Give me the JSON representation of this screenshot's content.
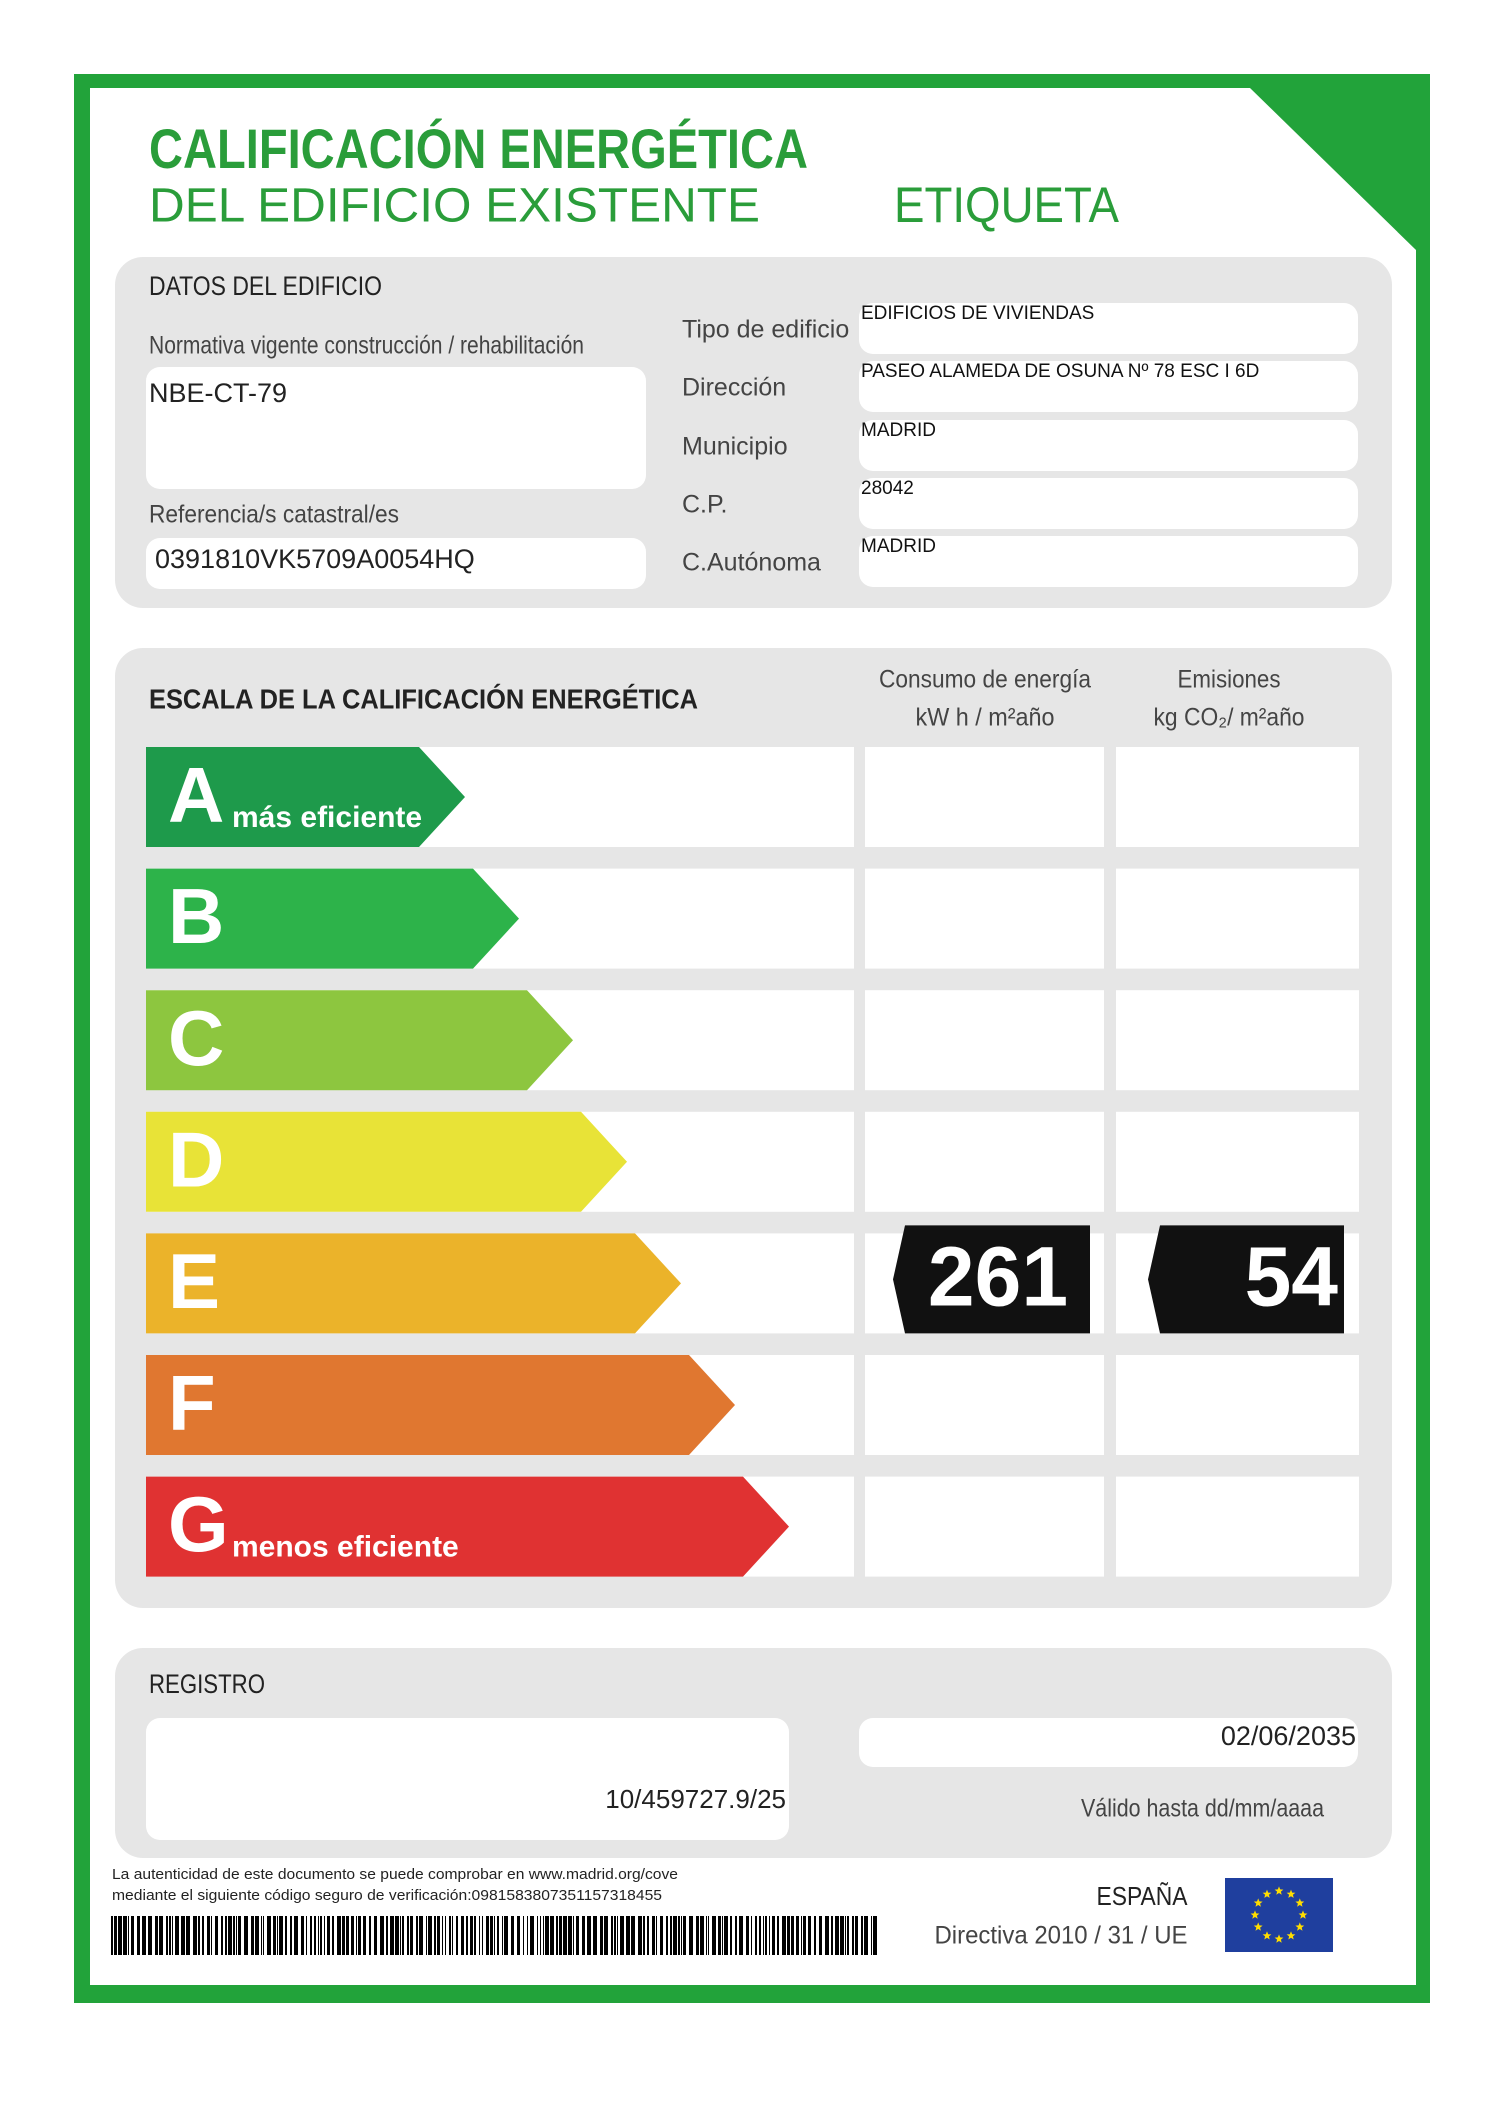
{
  "header": {
    "title": "CALIFICACIÓN ENERGÉTICA",
    "subtitle": "DEL EDIFICIO EXISTENTE",
    "tag": "ETIQUETA"
  },
  "building": {
    "heading": "DATOS DEL EDIFICIO",
    "normativa_label": "Normativa vigente construcción / rehabilitación",
    "normativa": "NBE-CT-79",
    "referencia_label": "Referencia/s catastral/es",
    "referencia": "0391810VK5709A0054HQ",
    "fields": [
      {
        "label": "Tipo de edificio",
        "value": "EDIFICIOS DE VIVIENDAS"
      },
      {
        "label": "Dirección",
        "value": "PASEO ALAMEDA DE OSUNA Nº 78 ESC I 6D"
      },
      {
        "label": "Municipio",
        "value": "MADRID"
      },
      {
        "label": "C.P.",
        "value": "28042"
      },
      {
        "label": "C.Autónoma",
        "value": "MADRID"
      }
    ]
  },
  "scale": {
    "heading": "ESCALA DE LA CALIFICACIÓN ENERGÉTICA",
    "consumo_header": [
      "Consumo de energía",
      "kW h / m²año"
    ],
    "emisiones_header": [
      "Emisiones",
      "kg CO₂/ m²año"
    ],
    "rows": [
      {
        "letter": "A",
        "note": "más eficiente"
      },
      {
        "letter": "B"
      },
      {
        "letter": "C"
      },
      {
        "letter": "D"
      },
      {
        "letter": "E"
      },
      {
        "letter": "F"
      },
      {
        "letter": "G",
        "note": "menos eficiente"
      }
    ],
    "consumo": "261",
    "emisiones": "54"
  },
  "registro": {
    "heading": "REGISTRO",
    "number": "10/459727.9/25",
    "valid_until": "02/06/2035",
    "valid_label": "Válido hasta dd/mm/aaaa"
  },
  "footer": {
    "note": [
      "La autenticidad de este documento se puede comprobar en www.madrid.org/cove",
      "mediante el siguiente código seguro de verificación:0981583807351157318455"
    ],
    "country": "ESPAÑA",
    "directive": "Directiva 2010 / 31 / UE"
  }
}
